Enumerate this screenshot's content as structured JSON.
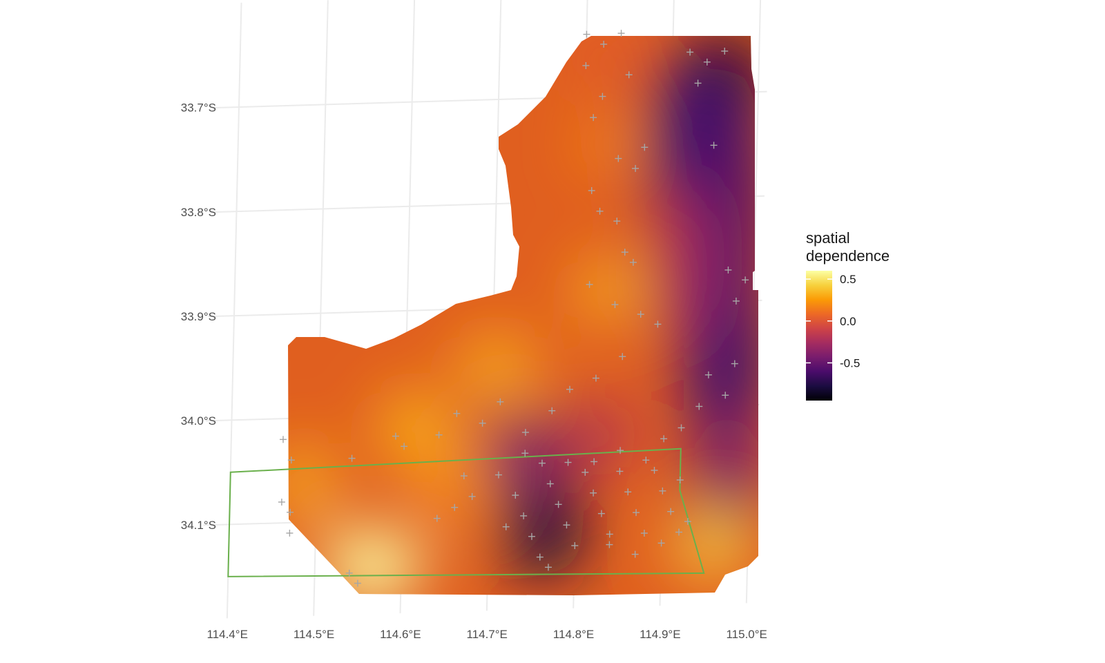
{
  "chart_data": {
    "type": "heatmap",
    "title": "",
    "xlabel": "",
    "ylabel": "",
    "x_ticks": [
      "114.4°E",
      "114.5°E",
      "114.6°E",
      "114.7°E",
      "114.8°E",
      "114.9°E",
      "115.0°E"
    ],
    "y_ticks": [
      "33.7°S",
      "33.8°S",
      "33.9°S",
      "34.0°S",
      "34.1°S"
    ],
    "xlim": [
      114.4,
      115.0
    ],
    "ylim": [
      -34.17,
      -33.62
    ],
    "grid": true,
    "legend": {
      "title_line1": "spatial",
      "title_line2": "dependence",
      "labels": [
        "0.5",
        "0.0",
        "-0.5"
      ],
      "values": [
        0.5,
        0.0,
        -0.5
      ],
      "range": [
        -0.95,
        0.6
      ],
      "palette": [
        "#000004",
        "#1b0c41",
        "#4a0c6b",
        "#781c6d",
        "#a52c60",
        "#cf4446",
        "#ed6925",
        "#fb9b06",
        "#f7d13d",
        "#fcffa4"
      ],
      "placement": "right"
    },
    "study_area": {
      "color": "#e05f1f"
    },
    "boundary": {
      "color": "#6ab04c",
      "lonlat": [
        [
          114.4,
          -34.05
        ],
        [
          114.92,
          -34.04
        ],
        [
          114.92,
          -34.08
        ],
        [
          114.95,
          -34.16
        ],
        [
          114.4,
          -34.15
        ]
      ]
    },
    "points_color": "#a6a6a6",
    "points": [
      [
        114.8,
        -33.64
      ],
      [
        114.82,
        -33.65
      ],
      [
        114.84,
        -33.64
      ],
      [
        114.8,
        -33.67
      ],
      [
        114.85,
        -33.68
      ],
      [
        114.82,
        -33.7
      ],
      [
        114.81,
        -33.72
      ],
      [
        114.84,
        -33.76
      ],
      [
        114.86,
        -33.77
      ],
      [
        114.87,
        -33.75
      ],
      [
        114.81,
        -33.79
      ],
      [
        114.82,
        -33.81
      ],
      [
        114.84,
        -33.82
      ],
      [
        114.85,
        -33.85
      ],
      [
        114.86,
        -33.86
      ],
      [
        114.81,
        -33.88
      ],
      [
        114.84,
        -33.9
      ],
      [
        114.87,
        -33.91
      ],
      [
        114.89,
        -33.92
      ],
      [
        114.92,
        -33.66
      ],
      [
        114.94,
        -33.67
      ],
      [
        114.96,
        -33.66
      ],
      [
        114.93,
        -33.69
      ],
      [
        114.95,
        -33.75
      ],
      [
        114.97,
        -33.87
      ],
      [
        114.99,
        -33.88
      ],
      [
        114.98,
        -33.9
      ],
      [
        114.95,
        -33.97
      ],
      [
        114.97,
        -33.99
      ],
      [
        114.98,
        -33.96
      ],
      [
        114.94,
        -34.0
      ],
      [
        114.92,
        -34.02
      ],
      [
        114.9,
        -34.03
      ],
      [
        114.85,
        -33.95
      ],
      [
        114.82,
        -33.97
      ],
      [
        114.79,
        -33.98
      ],
      [
        114.77,
        -34.0
      ],
      [
        114.74,
        -34.02
      ],
      [
        114.71,
        -33.99
      ],
      [
        114.69,
        -34.01
      ],
      [
        114.66,
        -34.0
      ],
      [
        114.64,
        -34.02
      ],
      [
        114.59,
        -34.02
      ],
      [
        114.6,
        -34.03
      ],
      [
        114.54,
        -34.04
      ],
      [
        114.46,
        -34.02
      ],
      [
        114.47,
        -34.04
      ],
      [
        114.46,
        -34.08
      ],
      [
        114.47,
        -34.09
      ],
      [
        114.47,
        -34.11
      ],
      [
        114.54,
        -34.15
      ],
      [
        114.55,
        -34.16
      ],
      [
        114.64,
        -34.1
      ],
      [
        114.66,
        -34.09
      ],
      [
        114.67,
        -34.06
      ],
      [
        114.68,
        -34.08
      ],
      [
        114.71,
        -34.06
      ],
      [
        114.73,
        -34.08
      ],
      [
        114.74,
        -34.1
      ],
      [
        114.75,
        -34.12
      ],
      [
        114.76,
        -34.14
      ],
      [
        114.77,
        -34.07
      ],
      [
        114.78,
        -34.09
      ],
      [
        114.79,
        -34.11
      ],
      [
        114.8,
        -34.13
      ],
      [
        114.81,
        -34.06
      ],
      [
        114.82,
        -34.08
      ],
      [
        114.83,
        -34.1
      ],
      [
        114.84,
        -34.12
      ],
      [
        114.85,
        -34.06
      ],
      [
        114.86,
        -34.08
      ],
      [
        114.87,
        -34.1
      ],
      [
        114.88,
        -34.12
      ],
      [
        114.89,
        -34.06
      ],
      [
        114.9,
        -34.08
      ],
      [
        114.91,
        -34.1
      ],
      [
        114.92,
        -34.12
      ],
      [
        114.93,
        -34.11
      ],
      [
        114.92,
        -34.07
      ],
      [
        114.88,
        -34.05
      ],
      [
        114.85,
        -34.04
      ],
      [
        114.82,
        -34.05
      ],
      [
        114.79,
        -34.05
      ],
      [
        114.76,
        -34.05
      ],
      [
        114.74,
        -34.04
      ],
      [
        114.9,
        -34.13
      ],
      [
        114.87,
        -34.14
      ],
      [
        114.84,
        -34.13
      ],
      [
        114.77,
        -34.15
      ],
      [
        114.72,
        -34.11
      ]
    ]
  }
}
